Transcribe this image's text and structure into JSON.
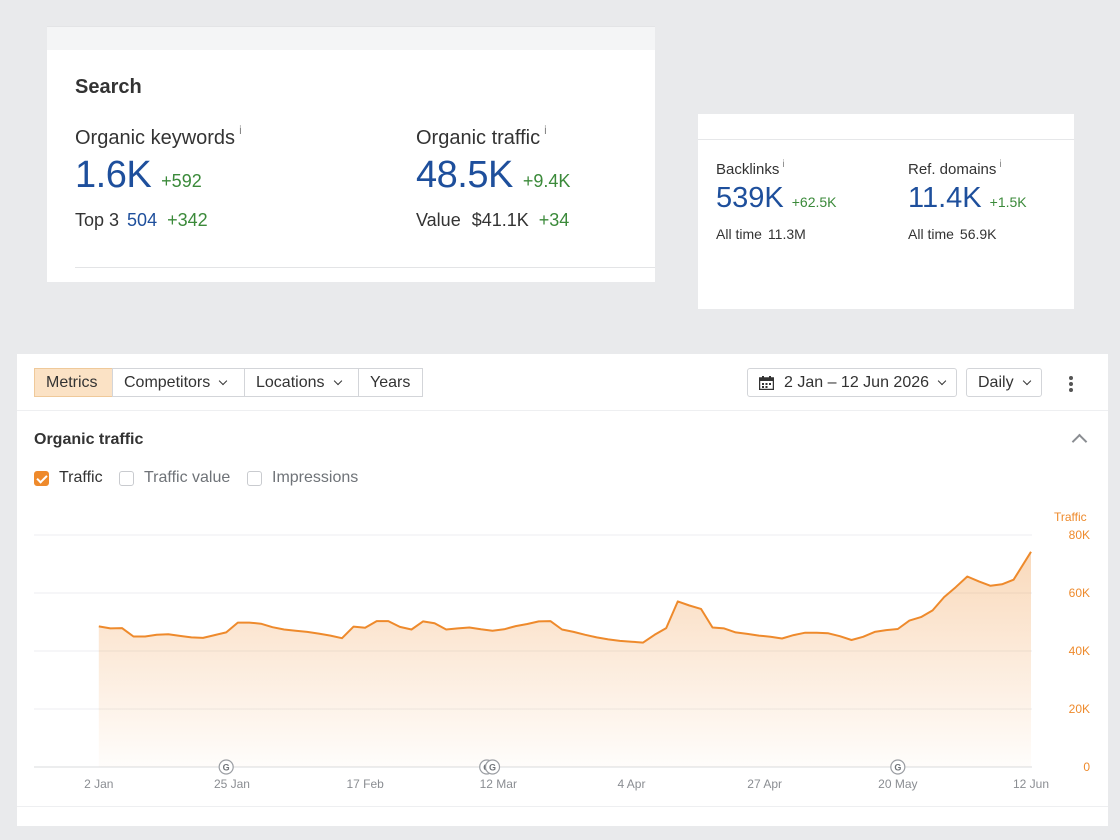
{
  "search": {
    "title": "Search",
    "organic_keywords": {
      "label": "Organic keywords",
      "info": "i",
      "value": "1.6K",
      "delta": "+592"
    },
    "top3": {
      "label": "Top 3",
      "value": "504",
      "delta": "+342"
    },
    "organic_traffic": {
      "label": "Organic traffic",
      "info": "i",
      "value": "48.5K",
      "delta": "+9.4K"
    },
    "traffic_value": {
      "label": "Value",
      "value": "$41.1K",
      "delta": "+34"
    }
  },
  "backlinks_card": {
    "backlinks": {
      "label": "Backlinks",
      "info": "i",
      "value": "539K",
      "delta": "+62.5K",
      "all_time_label": "All time",
      "all_time_value": "11.3M"
    },
    "ref_domains": {
      "label": "Ref. domains",
      "info": "i",
      "value": "11.4K",
      "delta": "+1.5K",
      "all_time_label": "All time",
      "all_time_value": "56.9K"
    }
  },
  "toolbar": {
    "tabs": [
      "Metrics",
      "Competitors",
      "Locations",
      "Years"
    ],
    "active_tab": "Metrics",
    "date_range": "2 Jan – 12 Jun 2026",
    "granularity": "Daily"
  },
  "chart_section": {
    "title": "Organic traffic",
    "checkboxes": [
      {
        "label": "Traffic",
        "checked": true
      },
      {
        "label": "Traffic value",
        "checked": false
      },
      {
        "label": "Impressions",
        "checked": false
      }
    ]
  },
  "colors": {
    "accent": "#ee8a2c",
    "value_blue": "#1e4f9c",
    "delta_green": "#3b8a3a",
    "active_tab_bg": "#fbe2c5"
  },
  "chart_data": {
    "type": "area",
    "series": [
      {
        "name": "Traffic",
        "x": [
          "2 Jan",
          "4 Jan",
          "6 Jan",
          "8 Jan",
          "10 Jan",
          "12 Jan",
          "14 Jan",
          "16 Jan",
          "18 Jan",
          "20 Jan",
          "22 Jan",
          "24 Jan",
          "26 Jan",
          "28 Jan",
          "30 Jan",
          "1 Feb",
          "3 Feb",
          "5 Feb",
          "7 Feb",
          "9 Feb",
          "11 Feb",
          "13 Feb",
          "15 Feb",
          "17 Feb",
          "19 Feb",
          "21 Feb",
          "23 Feb",
          "25 Feb",
          "27 Feb",
          "1 Mar",
          "3 Mar",
          "5 Mar",
          "7 Mar",
          "9 Mar",
          "11 Mar",
          "13 Mar",
          "15 Mar",
          "17 Mar",
          "19 Mar",
          "21 Mar",
          "23 Mar",
          "25 Mar",
          "27 Mar",
          "29 Mar",
          "31 Mar",
          "2 Apr",
          "4 Apr",
          "6 Apr",
          "8 Apr",
          "10 Apr",
          "12 Apr",
          "14 Apr",
          "16 Apr",
          "18 Apr",
          "20 Apr",
          "22 Apr",
          "24 Apr",
          "26 Apr",
          "28 Apr",
          "30 Apr",
          "2 May",
          "4 May",
          "6 May",
          "8 May",
          "10 May",
          "12 May",
          "14 May",
          "16 May",
          "18 May",
          "20 May",
          "22 May",
          "24 May",
          "26 May",
          "28 May",
          "30 May",
          "1 Jun",
          "3 Jun",
          "5 Jun",
          "7 Jun",
          "9 Jun",
          "12 Jun"
        ],
        "values": [
          48500,
          47800,
          47900,
          45000,
          45000,
          45600,
          45800,
          45200,
          44700,
          44500,
          45500,
          46400,
          49800,
          49800,
          49400,
          48200,
          47400,
          47000,
          46600,
          46000,
          45300,
          44400,
          48400,
          48000,
          50300,
          50300,
          48300,
          47400,
          50200,
          49600,
          47400,
          47800,
          48100,
          47500,
          47000,
          47500,
          48600,
          49300,
          50200,
          50300,
          47400,
          46600,
          45600,
          44700,
          44000,
          43500,
          43200,
          42900,
          45600,
          47900,
          57100,
          55700,
          54500,
          48100,
          47800,
          46400,
          45900,
          45300,
          44900,
          44300,
          45500,
          46300,
          46300,
          46100,
          45100,
          43800,
          44900,
          46600,
          47200,
          47600,
          50500,
          51700,
          54000,
          58600,
          62000,
          65700,
          64000,
          62500,
          63000,
          64600,
          74200
        ]
      }
    ],
    "x_tick_labels": [
      "2 Jan",
      "25 Jan",
      "17 Feb",
      "12 Mar",
      "4 Apr",
      "27 Apr",
      "20 May",
      "12 Jun"
    ],
    "y_axis": {
      "title": "Traffic",
      "ticks": [
        "0",
        "20K",
        "40K",
        "60K",
        "80K"
      ],
      "range": [
        0,
        80000
      ],
      "position": "right"
    },
    "annotations": [
      {
        "marker": "G",
        "date": "24 Jan"
      },
      {
        "marker": "G",
        "date": "10 Mar"
      },
      {
        "marker": "G",
        "date": "11 Mar"
      },
      {
        "marker": "G",
        "date": "20 May"
      }
    ],
    "grid": true,
    "legend": "none"
  }
}
